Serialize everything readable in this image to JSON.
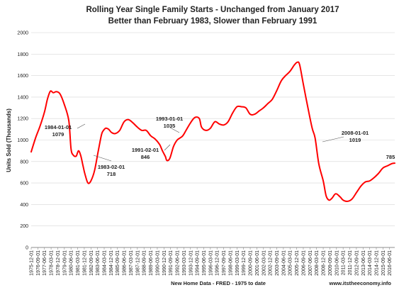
{
  "chart_data": {
    "type": "line",
    "title": "Rolling Year Single Family Starts - Unchanged from January 2017",
    "subtitle": "Better than February 1983, Slower than February 1991",
    "ylabel": "Units Sold (Thousands)",
    "footer_source": "New Home Data - FRED - 1975 to date",
    "footer_site": "www.itstheeconomy.info",
    "ylim": [
      0,
      2000
    ],
    "y_ticks": [
      0,
      200,
      400,
      600,
      800,
      1000,
      1200,
      1400,
      1600,
      1800,
      2000
    ],
    "grid": true,
    "x_ticks": [
      "1975-12-01",
      "1976-09-01",
      "1977-06-01",
      "1978-03-01",
      "1978-12-01",
      "1979-09-01",
      "1980-06-01",
      "1981-03-01",
      "1981-12-01",
      "1982-09-01",
      "1983-06-01",
      "1984-03-01",
      "1984-12-01",
      "1985-09-01",
      "1986-06-01",
      "1987-03-01",
      "1987-12-01",
      "1988-09-01",
      "1989-06-01",
      "1990-03-01",
      "1990-12-01",
      "1991-09-01",
      "1992-06-01",
      "1993-03-01",
      "1993-12-01",
      "1994-09-01",
      "1995-06-01",
      "1996-03-01",
      "1996-12-01",
      "1997-09-01",
      "1998-06-01",
      "1999-03-01",
      "1999-12-01",
      "2000-09-01",
      "2001-06-01",
      "2002-03-01",
      "2002-12-01",
      "2003-09-01",
      "2004-06-01",
      "2005-03-01",
      "2005-12-01",
      "2006-09-01",
      "2007-06-01",
      "2008-03-01",
      "2008-12-01",
      "2009-09-01",
      "2010-06-01",
      "2011-03-01",
      "2011-12-01",
      "2012-09-01",
      "2013-06-01",
      "2014-03-01",
      "2014-12-01",
      "2015-09-01",
      "2016-06-01"
    ],
    "series": [
      {
        "color": "#ff0000",
        "points": [
          [
            "1975-12-01",
            890
          ],
          [
            "1976-06-01",
            1020
          ],
          [
            "1976-12-01",
            1130
          ],
          [
            "1977-06-01",
            1260
          ],
          [
            "1977-10-01",
            1380
          ],
          [
            "1978-02-01",
            1455
          ],
          [
            "1978-06-01",
            1440
          ],
          [
            "1978-10-01",
            1450
          ],
          [
            "1979-03-01",
            1430
          ],
          [
            "1979-09-01",
            1330
          ],
          [
            "1980-03-01",
            1180
          ],
          [
            "1980-06-01",
            920
          ],
          [
            "1980-09-01",
            860
          ],
          [
            "1981-01-01",
            850
          ],
          [
            "1981-04-01",
            900
          ],
          [
            "1981-07-01",
            860
          ],
          [
            "1981-10-01",
            770
          ],
          [
            "1982-01-01",
            680
          ],
          [
            "1982-05-01",
            600
          ],
          [
            "1982-09-01",
            620
          ],
          [
            "1983-02-01",
            718
          ],
          [
            "1983-07-01",
            900
          ],
          [
            "1983-11-01",
            1040
          ],
          [
            "1984-01-01",
            1079
          ],
          [
            "1984-05-01",
            1110
          ],
          [
            "1984-09-01",
            1100
          ],
          [
            "1985-01-01",
            1070
          ],
          [
            "1985-06-01",
            1060
          ],
          [
            "1985-12-01",
            1090
          ],
          [
            "1986-06-01",
            1170
          ],
          [
            "1986-12-01",
            1190
          ],
          [
            "1987-06-01",
            1160
          ],
          [
            "1987-12-01",
            1120
          ],
          [
            "1988-06-01",
            1090
          ],
          [
            "1988-12-01",
            1090
          ],
          [
            "1989-06-01",
            1040
          ],
          [
            "1989-12-01",
            1010
          ],
          [
            "1990-06-01",
            960
          ],
          [
            "1990-10-01",
            900
          ],
          [
            "1991-02-01",
            846
          ],
          [
            "1991-04-01",
            810
          ],
          [
            "1991-08-01",
            830
          ],
          [
            "1992-01-01",
            940
          ],
          [
            "1992-06-01",
            1000
          ],
          [
            "1993-01-01",
            1035
          ],
          [
            "1993-06-01",
            1090
          ],
          [
            "1993-12-01",
            1160
          ],
          [
            "1994-06-01",
            1210
          ],
          [
            "1994-12-01",
            1200
          ],
          [
            "1995-03-01",
            1120
          ],
          [
            "1995-09-01",
            1090
          ],
          [
            "1996-03-01",
            1110
          ],
          [
            "1996-09-01",
            1170
          ],
          [
            "1997-03-01",
            1150
          ],
          [
            "1997-09-01",
            1140
          ],
          [
            "1998-03-01",
            1170
          ],
          [
            "1998-09-01",
            1250
          ],
          [
            "1999-03-01",
            1310
          ],
          [
            "1999-09-01",
            1310
          ],
          [
            "2000-03-01",
            1300
          ],
          [
            "2000-09-01",
            1240
          ],
          [
            "2001-03-01",
            1240
          ],
          [
            "2001-09-01",
            1270
          ],
          [
            "2002-03-01",
            1300
          ],
          [
            "2002-09-01",
            1340
          ],
          [
            "2003-03-01",
            1380
          ],
          [
            "2003-09-01",
            1460
          ],
          [
            "2004-03-01",
            1550
          ],
          [
            "2004-09-01",
            1600
          ],
          [
            "2005-03-01",
            1640
          ],
          [
            "2005-09-01",
            1700
          ],
          [
            "2006-01-01",
            1725
          ],
          [
            "2006-04-01",
            1700
          ],
          [
            "2006-09-01",
            1520
          ],
          [
            "2007-03-01",
            1310
          ],
          [
            "2007-09-01",
            1110
          ],
          [
            "2008-01-01",
            1019
          ],
          [
            "2008-06-01",
            780
          ],
          [
            "2008-12-01",
            620
          ],
          [
            "2009-04-01",
            480
          ],
          [
            "2009-08-01",
            440
          ],
          [
            "2009-12-01",
            460
          ],
          [
            "2010-05-01",
            500
          ],
          [
            "2010-11-01",
            470
          ],
          [
            "2011-03-01",
            440
          ],
          [
            "2011-09-01",
            430
          ],
          [
            "2012-03-01",
            450
          ],
          [
            "2012-09-01",
            510
          ],
          [
            "2013-03-01",
            570
          ],
          [
            "2013-09-01",
            610
          ],
          [
            "2014-03-01",
            620
          ],
          [
            "2014-09-01",
            650
          ],
          [
            "2015-03-01",
            690
          ],
          [
            "2015-09-01",
            740
          ],
          [
            "2016-03-01",
            760
          ],
          [
            "2016-09-01",
            780
          ],
          [
            "2017-01-01",
            785
          ]
        ]
      }
    ],
    "annotations": [
      {
        "date": "1984-01-01",
        "value": "1079",
        "dir": "up"
      },
      {
        "date": "1983-02-01",
        "value": "718",
        "dir": "down"
      },
      {
        "date": "1993-01-01",
        "value": "1035",
        "dir": "up"
      },
      {
        "date": "1991-02-01",
        "value": "846",
        "dir": "down"
      },
      {
        "date": "2008-01-01",
        "value": "1019",
        "dir": "right"
      },
      {
        "date": "",
        "value": "785",
        "dir": "end"
      }
    ]
  }
}
